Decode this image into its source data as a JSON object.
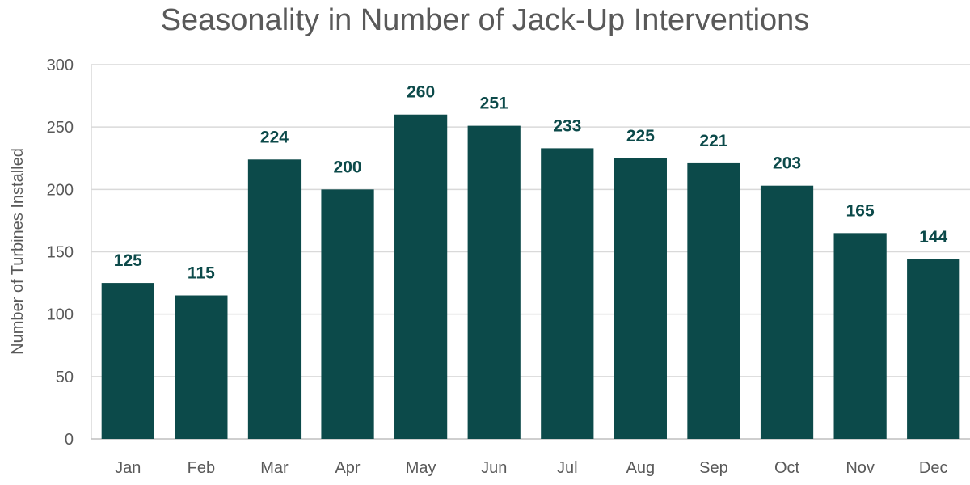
{
  "chart_data": {
    "type": "bar",
    "title": "Seasonality in Number of Jack-Up Interventions",
    "xlabel": "",
    "ylabel": "Number of Turbines Installed",
    "categories": [
      "Jan",
      "Feb",
      "Mar",
      "Apr",
      "May",
      "Jun",
      "Jul",
      "Aug",
      "Sep",
      "Oct",
      "Nov",
      "Dec"
    ],
    "values": [
      125,
      115,
      224,
      200,
      260,
      251,
      233,
      225,
      221,
      203,
      165,
      144
    ],
    "ylim": [
      0,
      300
    ],
    "yticks": [
      0,
      50,
      100,
      150,
      200,
      250,
      300
    ],
    "grid": true,
    "legend": "none",
    "bar_color": "#0c4a4a",
    "data_label_color": "#0c4a4a"
  }
}
